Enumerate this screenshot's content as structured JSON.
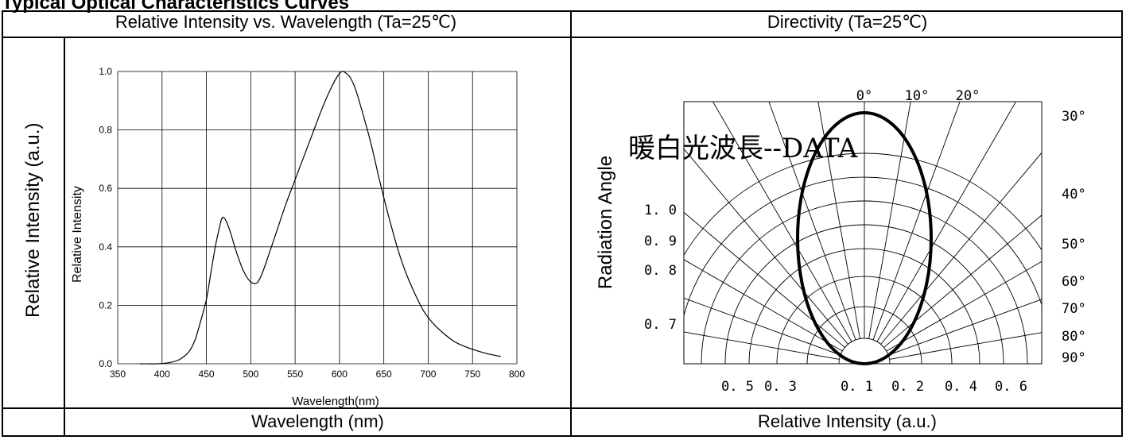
{
  "section_title": "Typical Optical Characteristics Curves",
  "left_panel": {
    "header": "Relative Intensity vs. Wavelength (Ta=25℃)",
    "footer": "Wavelength (nm)",
    "side_label": "Relative Intensity (a.u.)"
  },
  "right_panel": {
    "header": "Directivity (Ta=25℃)",
    "footer": "Relative Intensity (a.u.)",
    "side_label": "Radiation Angle",
    "overlay_text": "暖白光波長--DATA"
  },
  "chart_data": [
    {
      "type": "line",
      "title": "",
      "xlabel": "Wavelength(nm)",
      "ylabel": "Relative Intensity",
      "xlim": [
        350,
        800
      ],
      "ylim": [
        0,
        1.0
      ],
      "grid": true,
      "x_ticks": [
        "350",
        "400",
        "450",
        "500",
        "550",
        "600",
        "650",
        "700",
        "750",
        "800"
      ],
      "y_ticks": [
        "0.0",
        "0.2",
        "0.4",
        "0.6",
        "0.8",
        "1.0"
      ],
      "series": [
        {
          "x": [
            375,
            395,
            410,
            420,
            430,
            437,
            443,
            450,
            455,
            460,
            465,
            468,
            472,
            477,
            483,
            490,
            497,
            503,
            508,
            513,
            520,
            530,
            540,
            550,
            560,
            570,
            580,
            590,
            598,
            603,
            607,
            612,
            618,
            625,
            635,
            645,
            655,
            665,
            675,
            685,
            695,
            705,
            715,
            730,
            745,
            760,
            770,
            782
          ],
          "y": [
            0.0,
            0.0,
            0.005,
            0.015,
            0.04,
            0.08,
            0.14,
            0.22,
            0.31,
            0.4,
            0.47,
            0.5,
            0.49,
            0.45,
            0.39,
            0.33,
            0.29,
            0.275,
            0.28,
            0.31,
            0.37,
            0.46,
            0.55,
            0.63,
            0.71,
            0.79,
            0.87,
            0.94,
            0.985,
            1.0,
            0.995,
            0.98,
            0.94,
            0.87,
            0.76,
            0.63,
            0.51,
            0.4,
            0.31,
            0.24,
            0.18,
            0.14,
            0.11,
            0.075,
            0.055,
            0.04,
            0.032,
            0.025
          ]
        }
      ]
    },
    {
      "type": "polar",
      "angle_labels": [
        "0°",
        "10°",
        "20°",
        "30°",
        "40°",
        "50°",
        "60°",
        "70°",
        "80°",
        "90°"
      ],
      "radius_labels": [
        "1. 0",
        "0. 9",
        "0. 8",
        "0. 7"
      ],
      "bottom_labels": [
        "0. 5",
        "0. 3",
        "0. 1",
        "0. 2",
        "0. 4",
        "0. 6"
      ],
      "pattern": "narrow ellipse lobe centered on 0°"
    }
  ]
}
